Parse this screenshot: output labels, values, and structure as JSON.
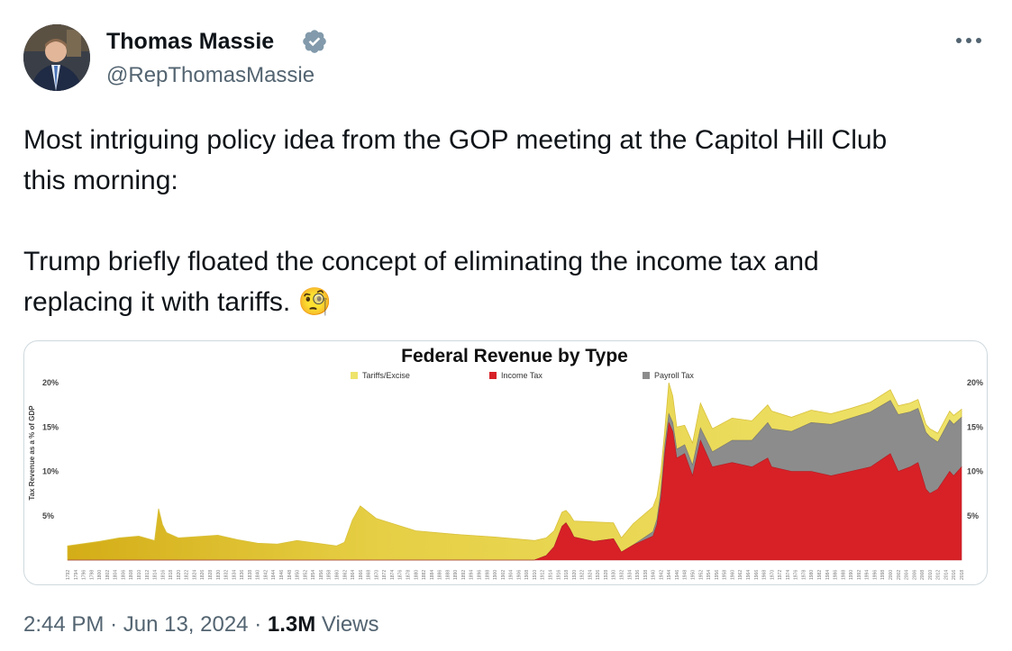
{
  "tweet": {
    "author_name": "Thomas Massie",
    "handle": "@RepThomasMassie",
    "text_line1": "Most intriguing policy idea from the GOP meeting at the Capitol Hill Club",
    "text_line2": "this morning:",
    "text_line3": "Trump briefly floated the concept of eliminating the income tax and",
    "text_line4": "replacing it with tariffs. 🧐",
    "time": "2:44 PM",
    "separator": "·",
    "date": "Jun 13, 2024",
    "views_count": "1.3M",
    "views_label": "Views",
    "icons": {
      "verified": "verified-badge-icon",
      "more": "more-options-icon"
    },
    "colors": {
      "verified": "#829aab",
      "text": "#0f1419",
      "muted": "#536471"
    }
  },
  "chart_data": {
    "type": "area",
    "title": "Federal Revenue by Type",
    "ylabel": "Tax Revenue as a % of GDP",
    "ylim": [
      0,
      20
    ],
    "yticks": [
      "5%",
      "10%",
      "15%",
      "20%"
    ],
    "xlim": [
      1792,
      2018
    ],
    "legend_position": "top",
    "series": [
      {
        "name": "Tariffs/Excise",
        "color": "#eee36a"
      },
      {
        "name": "Income Tax",
        "color": "#d72127"
      },
      {
        "name": "Payroll Tax",
        "color": "#8c8c8c"
      }
    ],
    "years": [
      1792,
      1800,
      1805,
      1810,
      1814,
      1815,
      1816,
      1817,
      1820,
      1830,
      1835,
      1840,
      1845,
      1850,
      1855,
      1860,
      1862,
      1864,
      1866,
      1870,
      1880,
      1890,
      1900,
      1910,
      1913,
      1915,
      1917,
      1918,
      1919,
      1920,
      1925,
      1930,
      1932,
      1935,
      1940,
      1941,
      1942,
      1943,
      1944,
      1945,
      1946,
      1948,
      1950,
      1952,
      1955,
      1960,
      1965,
      1969,
      1970,
      1975,
      1980,
      1985,
      1990,
      1995,
      2000,
      2002,
      2005,
      2007,
      2009,
      2010,
      2012,
      2015,
      2016,
      2018
    ],
    "income_tax": [
      0,
      0,
      0,
      0,
      0,
      0,
      0,
      0,
      0,
      0,
      0,
      0,
      0,
      0,
      0,
      0,
      0,
      0,
      0,
      0,
      0,
      0,
      0,
      0,
      0.5,
      1.5,
      3.8,
      4.2,
      3.5,
      2.6,
      2.1,
      2.4,
      0.9,
      1.7,
      2.7,
      4,
      7,
      12,
      15.5,
      14.5,
      11.5,
      12,
      9.5,
      13.5,
      10.5,
      11,
      10.5,
      11.5,
      10.5,
      10,
      10,
      9.5,
      10,
      10.5,
      12,
      10,
      10.5,
      11,
      8,
      7.5,
      8,
      10,
      9.5,
      10.5
    ],
    "payroll_tax": [
      0,
      0,
      0,
      0,
      0,
      0,
      0,
      0,
      0,
      0,
      0,
      0,
      0,
      0,
      0,
      0,
      0,
      0,
      0,
      0,
      0,
      0,
      0,
      0,
      0,
      0,
      0,
      0,
      0,
      0,
      0,
      0,
      0,
      0,
      0.5,
      0.6,
      0.8,
      1,
      1,
      1,
      1,
      1,
      1.2,
      1.4,
      1.7,
      2.5,
      3,
      4,
      4.3,
      4.5,
      5.5,
      5.8,
      6,
      6.2,
      6,
      6.4,
      6.2,
      6.1,
      6.4,
      6.4,
      5.3,
      5.8,
      5.8,
      5.6
    ],
    "tariffs_excise": [
      1.6,
      2.1,
      2.5,
      2.7,
      2.2,
      5.8,
      4,
      3.1,
      2.5,
      2.8,
      2.3,
      1.9,
      1.8,
      2.2,
      1.9,
      1.6,
      2,
      4.5,
      6.1,
      4.7,
      3.3,
      2.9,
      2.6,
      2.2,
      2,
      1.8,
      1.6,
      1.4,
      1.6,
      1.8,
      2.2,
      1.8,
      1.6,
      2.4,
      2.8,
      2.6,
      2.2,
      1.8,
      3.5,
      3,
      2.5,
      2.2,
      2.5,
      2.8,
      2.6,
      2.5,
      2.2,
      2,
      2,
      1.6,
      1.4,
      1.2,
      1.1,
      1.1,
      1.2,
      1,
      1,
      1,
      0.9,
      0.9,
      1,
      1,
      1,
      0.9
    ]
  }
}
